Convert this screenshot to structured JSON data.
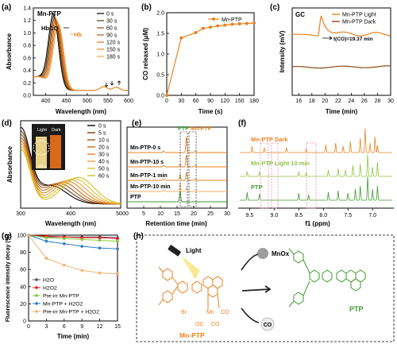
{
  "colors": {
    "orange": "#e8821e",
    "dark_orange": "#8a4a12",
    "green": "#3f9a2e",
    "light_green": "#8dc63f",
    "blue": "#2e7cbf",
    "navy": "#404a8c",
    "light_orange": "#f3b06b",
    "gray": "#5a5a5a",
    "red": "#e41a1c",
    "pink": "#e58ab0"
  },
  "panels": {
    "a": {
      "letter": "(a)",
      "tag": "Mn-PTP",
      "hbco": "HbCO",
      "hb": "Hb"
    },
    "b": {
      "letter": "(b)"
    },
    "c": {
      "letter": "(c)",
      "tag": "GC",
      "annotation": "t(CO)=19.37 min"
    },
    "d": {
      "letter": "(d)",
      "inset_light": "Light",
      "inset_dark": "Dark",
      "inset_time": "60 s"
    },
    "e": {
      "letter": "(e)",
      "tag_ptp": "PTP",
      "tag_mnptp": "Mn-PTP"
    },
    "f": {
      "letter": "(f)"
    },
    "g": {
      "letter": "(g)"
    },
    "h": {
      "letter": "(h)",
      "light": "Light",
      "mnox": "MnOx",
      "co_ball": "CO",
      "mnptp_label": "Mn-PTP",
      "ptp_label": "PTP",
      "br": "Br",
      "mn": "Mn",
      "co1": "CO",
      "oc": "OC",
      "co2": "CO"
    }
  },
  "chart_data": [
    {
      "panel": "a",
      "type": "line",
      "xlabel": "Wavelength (nm)",
      "ylabel": "Absorbance",
      "xlim": [
        370,
        600
      ],
      "ylim": [
        0.0,
        1.4
      ],
      "xticks": [
        400,
        450,
        500,
        550,
        600
      ],
      "yticks": [
        0.0,
        0.2,
        0.4,
        0.6,
        0.8,
        1.0,
        1.2,
        1.4
      ],
      "legend_position": "top-right",
      "series": [
        {
          "name": "0 s",
          "peak_nm": 419,
          "peak_abs": 1.17
        },
        {
          "name": "30 s",
          "peak_nm": 421,
          "peak_abs": 1.15
        },
        {
          "name": "60 s",
          "peak_nm": 423,
          "peak_abs": 1.13
        },
        {
          "name": "90 s",
          "peak_nm": 425,
          "peak_abs": 1.11
        },
        {
          "name": "120 s",
          "peak_nm": 427,
          "peak_abs": 1.09
        },
        {
          "name": "150 s",
          "peak_nm": 429,
          "peak_abs": 1.07
        },
        {
          "name": "180 s",
          "peak_nm": 431,
          "peak_abs": 1.05
        }
      ]
    },
    {
      "panel": "b",
      "type": "line",
      "xlabel": "Time (s)",
      "ylabel": "CO released (μM)",
      "xlim": [
        0,
        180
      ],
      "ylim": [
        0.0,
        2.0
      ],
      "xticks": [
        0,
        30,
        60,
        90,
        120,
        150,
        180
      ],
      "yticks": [
        0.0,
        0.5,
        1.0,
        1.5,
        2.0
      ],
      "legend_position": "top-right",
      "series": [
        {
          "name": "Mn-PTP",
          "x": [
            0,
            30,
            60,
            75,
            90,
            105,
            120,
            135,
            150,
            165,
            180
          ],
          "y": [
            0.0,
            1.39,
            1.52,
            1.62,
            1.65,
            1.68,
            1.7,
            1.72,
            1.73,
            1.74,
            1.75
          ]
        }
      ]
    },
    {
      "panel": "c",
      "type": "line",
      "xlabel": "Time (min)",
      "ylabel": "Intensity (mV)",
      "xlim": [
        15,
        30
      ],
      "xticks": [
        16,
        18,
        20,
        22,
        24,
        26,
        28,
        30
      ],
      "legend_position": "top-right",
      "series": [
        {
          "name": "Mn-PTP Light",
          "baseline": 0.7,
          "peak_x": 19.37,
          "peak_height": 0.22
        },
        {
          "name": "Mn-PTP Dark",
          "baseline": 0.32
        }
      ]
    },
    {
      "panel": "d",
      "type": "line",
      "xlabel": "Wavelength (nm)",
      "ylabel": "Absorbance",
      "xlim": [
        300,
        500
      ],
      "xticks": [
        300,
        400,
        500
      ],
      "legend_position": "top-right",
      "series": [
        {
          "name": "0 s"
        },
        {
          "name": "5 s"
        },
        {
          "name": "10 s"
        },
        {
          "name": "20 s"
        },
        {
          "name": "30 s"
        },
        {
          "name": "40 s"
        },
        {
          "name": "50 s"
        },
        {
          "name": "60 s"
        }
      ]
    },
    {
      "panel": "e",
      "type": "line",
      "xlabel": "Retention time (min)",
      "xlim": [
        0,
        30
      ],
      "xticks": [
        0,
        5,
        10,
        15,
        20,
        25,
        30
      ],
      "series": [
        {
          "name": "Mn-PTP-0 s"
        },
        {
          "name": "Mn-PTP-10 s"
        },
        {
          "name": "Mn-PTP-1 min"
        },
        {
          "name": "Mn-PTP-10 min"
        },
        {
          "name": "PTP"
        }
      ]
    },
    {
      "panel": "f",
      "type": "line",
      "xlabel": "f1 (ppm)",
      "xlim": [
        9.7,
        6.6
      ],
      "xticks": [
        9.5,
        9.0,
        8.5,
        8.0,
        7.5,
        7.0
      ],
      "series": [
        {
          "name": "Mn-PTP Dark"
        },
        {
          "name": "Mn-PTP Light 10 min"
        },
        {
          "name": "PTP"
        }
      ]
    },
    {
      "panel": "g",
      "type": "line",
      "xlabel": "Time (min)",
      "ylabel": "Fluorescence intensity decay (%)",
      "xlim": [
        0,
        15
      ],
      "ylim": [
        0,
        100
      ],
      "xticks": [
        0,
        3,
        6,
        9,
        12,
        15
      ],
      "yticks": [
        0,
        20,
        40,
        60,
        80,
        100
      ],
      "legend_position": "bottom-left",
      "series": [
        {
          "name": "H2O",
          "x": [
            0,
            3,
            6,
            9,
            12,
            15
          ],
          "y": [
            100,
            98,
            98,
            98,
            98,
            97
          ]
        },
        {
          "name": "H2O2",
          "x": [
            0,
            3,
            6,
            9,
            12,
            15
          ],
          "y": [
            100,
            99,
            98,
            97,
            97,
            96
          ]
        },
        {
          "name": "Pre-irr Mn-PTP",
          "x": [
            0,
            3,
            6,
            9,
            12,
            15
          ],
          "y": [
            100,
            97,
            96,
            95,
            94,
            93
          ]
        },
        {
          "name": "Mn-PTP + H2O2",
          "x": [
            0,
            3,
            6,
            9,
            12,
            15
          ],
          "y": [
            100,
            93,
            90,
            87,
            85,
            84
          ]
        },
        {
          "name": "Pre-irr Mn-PTP + H2O2",
          "x": [
            0,
            3,
            6,
            9,
            12,
            15
          ],
          "y": [
            100,
            73,
            65,
            59,
            56,
            55
          ]
        }
      ]
    }
  ]
}
